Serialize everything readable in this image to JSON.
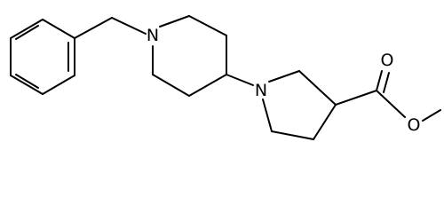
{
  "nodes": [
    {
      "label": "N"
    },
    {
      "label": "N"
    },
    {
      "label": "O"
    },
    {
      "label": "O"
    }
  ]
}
